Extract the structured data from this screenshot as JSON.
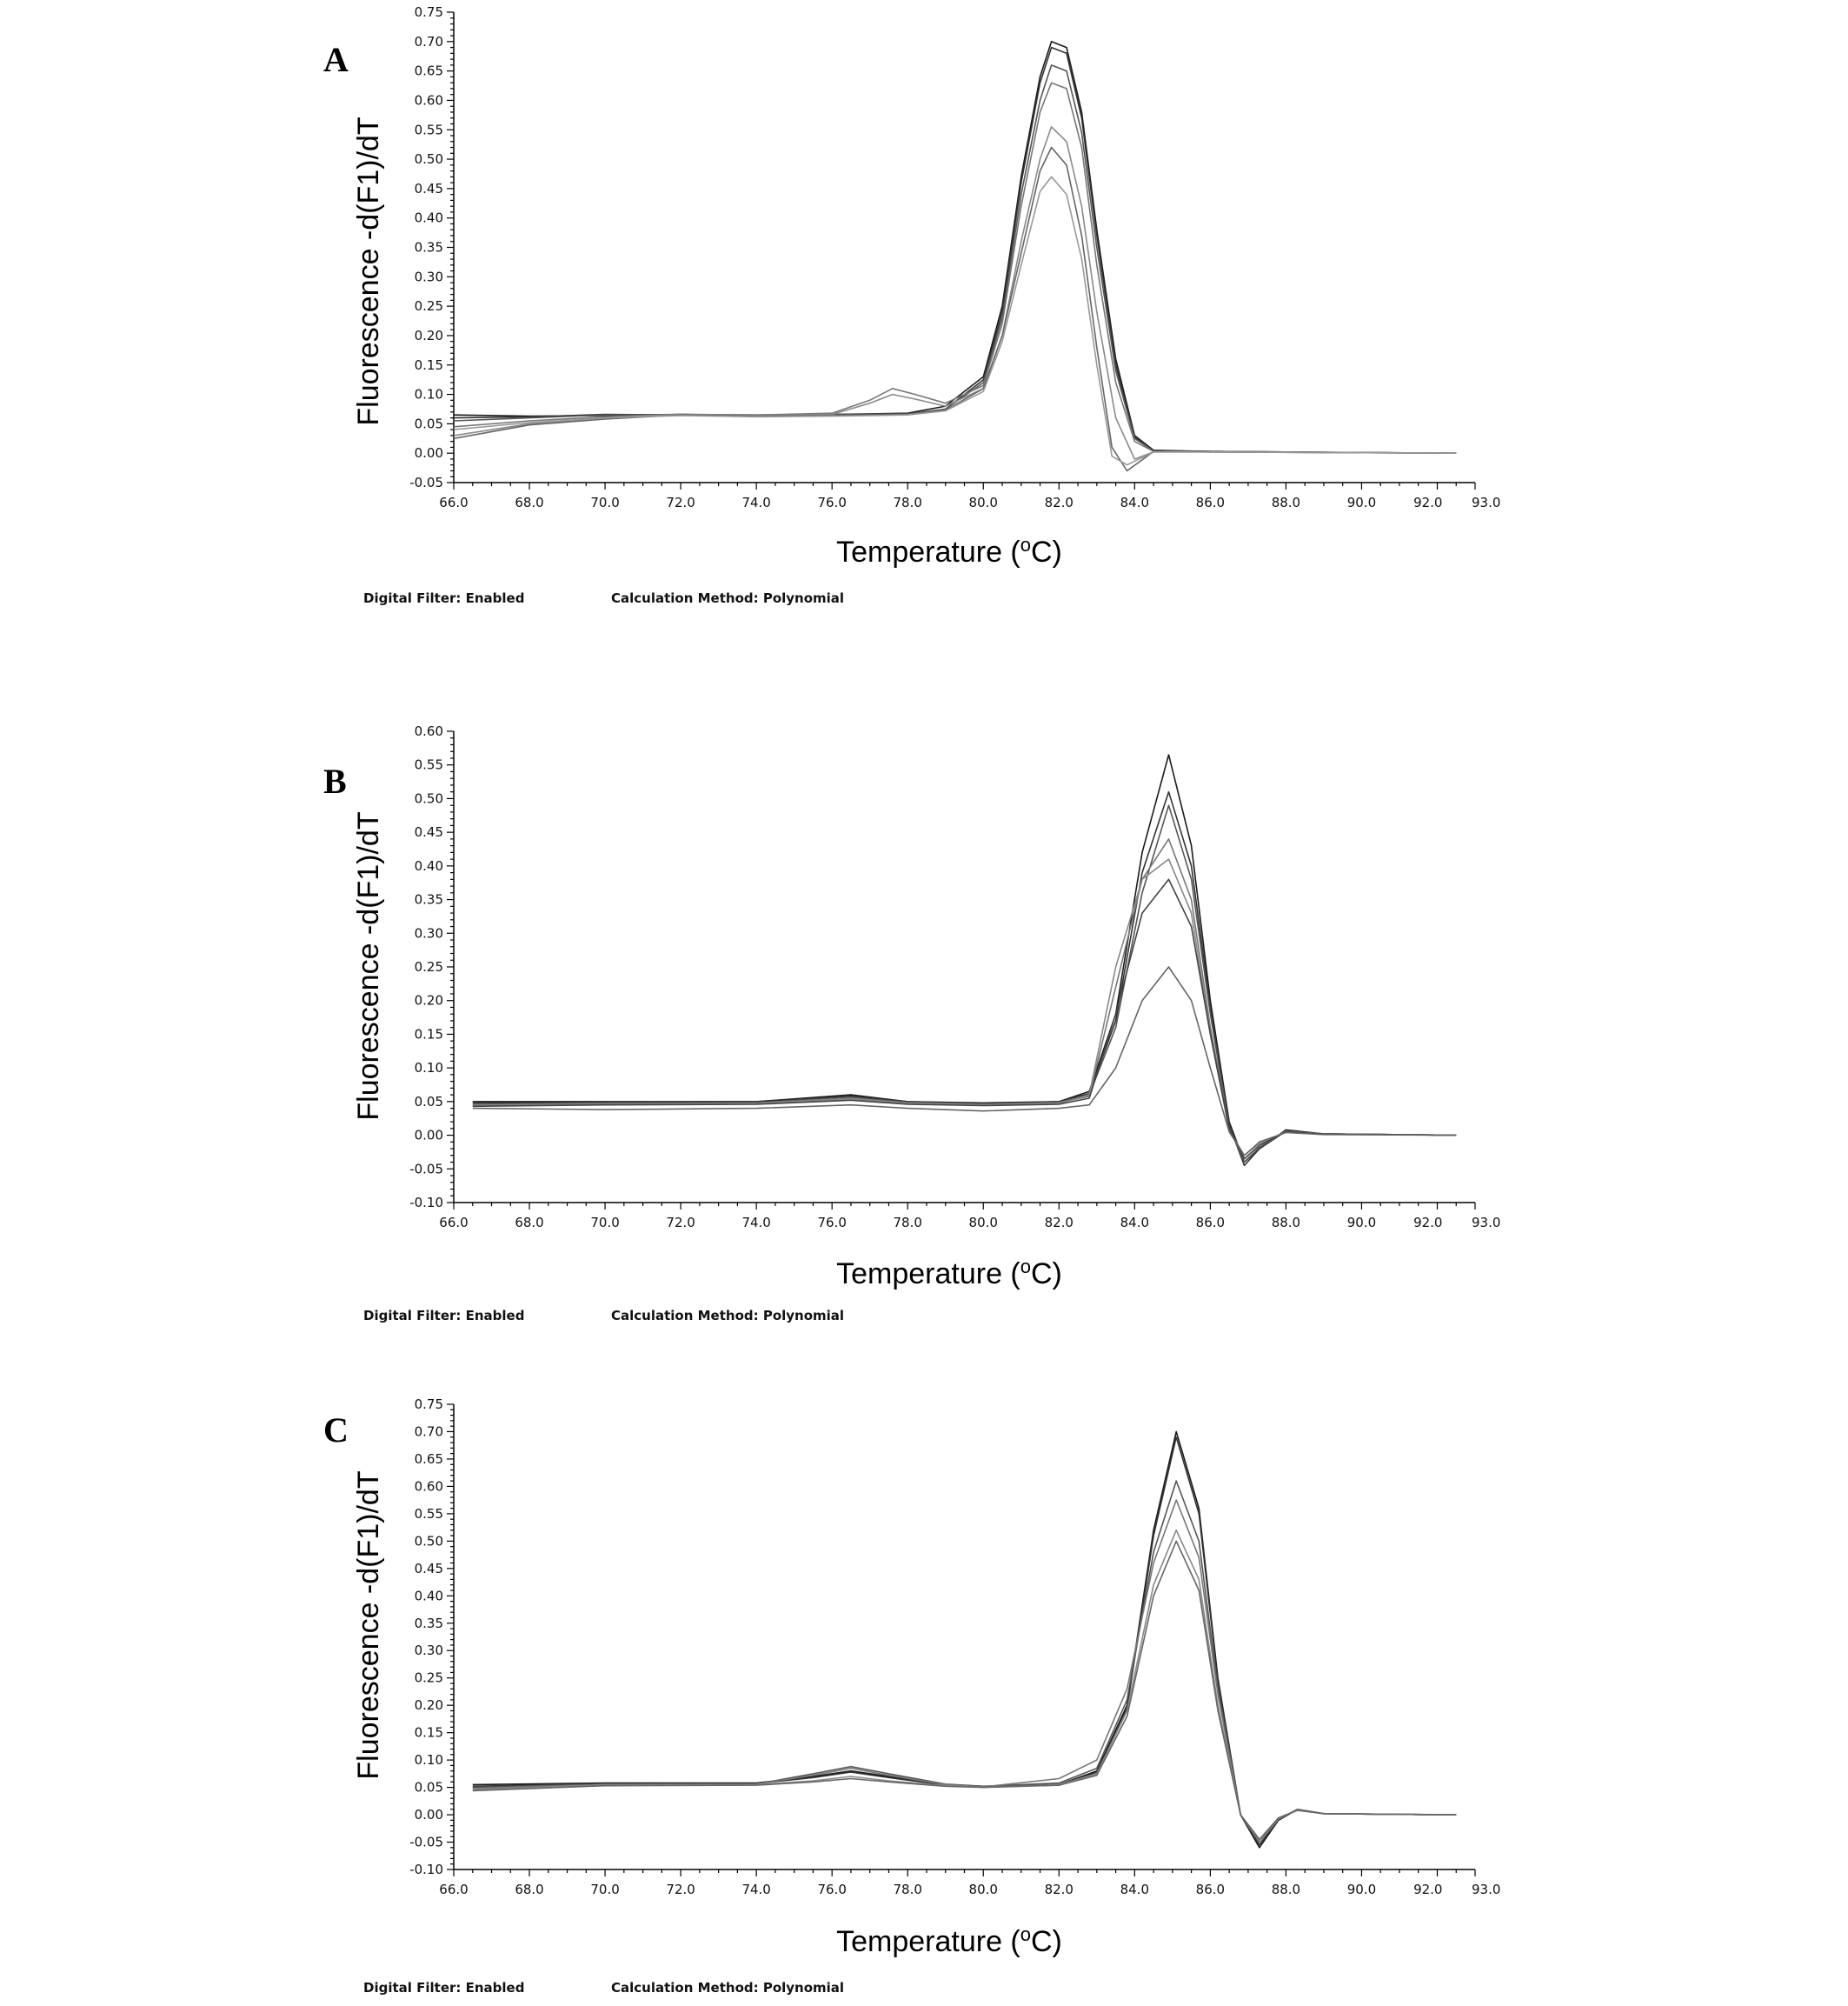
{
  "chart_data": [
    {
      "panel": "A",
      "type": "line",
      "xlabel": "Temperature (oC)",
      "ylabel": "Fluorescence -d(F1)/dT",
      "xlim": [
        66.0,
        93.0
      ],
      "ylim": [
        -0.05,
        0.75
      ],
      "x_ticks": [
        "66.0",
        "68.0",
        "70.0",
        "72.0",
        "74.0",
        "76.0",
        "78.0",
        "80.0",
        "82.0",
        "84.0",
        "86.0",
        "88.0",
        "90.0",
        "92.0",
        "93.0"
      ],
      "y_ticks": [
        "0.75",
        "0.70",
        "0.65",
        "0.60",
        "0.55",
        "0.50",
        "0.45",
        "0.40",
        "0.35",
        "0.30",
        "0.25",
        "0.20",
        "0.15",
        "0.10",
        "0.05",
        "0.00",
        "-0.05"
      ],
      "footer_left": "Digital Filter: Enabled",
      "footer_right": "Calculation Method: Polynomial",
      "series": [
        {
          "color": "#1a1a1a",
          "x": [
            66.0,
            68.0,
            70.0,
            72.0,
            74.0,
            76.0,
            78.0,
            79.0,
            80.0,
            80.5,
            81.0,
            81.5,
            81.8,
            82.2,
            82.6,
            83.0,
            83.5,
            84.0,
            84.5,
            86.0,
            92.5
          ],
          "y": [
            0.065,
            0.063,
            0.064,
            0.066,
            0.064,
            0.066,
            0.068,
            0.08,
            0.13,
            0.25,
            0.47,
            0.64,
            0.7,
            0.69,
            0.58,
            0.38,
            0.16,
            0.03,
            0.005,
            0.003,
            0.0
          ]
        },
        {
          "color": "#333333",
          "x": [
            66.0,
            68.0,
            70.0,
            72.0,
            74.0,
            76.0,
            78.0,
            79.0,
            80.0,
            80.5,
            81.0,
            81.5,
            81.8,
            82.2,
            82.6,
            83.0,
            83.5,
            84.0,
            84.5,
            86.0,
            92.5
          ],
          "y": [
            0.06,
            0.062,
            0.066,
            0.065,
            0.063,
            0.064,
            0.066,
            0.075,
            0.125,
            0.24,
            0.46,
            0.63,
            0.69,
            0.68,
            0.57,
            0.37,
            0.15,
            0.028,
            0.004,
            0.003,
            0.0
          ]
        },
        {
          "color": "#555555",
          "x": [
            66.0,
            68.0,
            70.0,
            72.0,
            74.0,
            76.0,
            78.0,
            79.0,
            80.0,
            80.5,
            81.0,
            81.5,
            81.8,
            82.2,
            82.6,
            83.0,
            83.5,
            84.0,
            84.5,
            86.0,
            92.5
          ],
          "y": [
            0.055,
            0.06,
            0.065,
            0.066,
            0.065,
            0.066,
            0.067,
            0.075,
            0.12,
            0.23,
            0.44,
            0.6,
            0.66,
            0.65,
            0.545,
            0.35,
            0.14,
            0.025,
            0.004,
            0.003,
            0.0
          ]
        },
        {
          "color": "#777777",
          "x": [
            66.0,
            68.0,
            70.0,
            72.0,
            74.0,
            76.0,
            77.0,
            77.6,
            78.2,
            79.0,
            80.0,
            80.5,
            81.0,
            81.5,
            81.8,
            82.2,
            82.6,
            83.0,
            83.5,
            84.0,
            84.5,
            86.0,
            92.5
          ],
          "y": [
            0.045,
            0.055,
            0.062,
            0.066,
            0.065,
            0.068,
            0.09,
            0.11,
            0.1,
            0.085,
            0.115,
            0.22,
            0.42,
            0.58,
            0.63,
            0.62,
            0.52,
            0.32,
            0.12,
            0.02,
            0.003,
            0.002,
            0.0
          ]
        },
        {
          "color": "#8a8a8a",
          "x": [
            66.0,
            68.0,
            70.0,
            72.0,
            74.0,
            76.0,
            77.0,
            77.6,
            78.2,
            79.0,
            80.0,
            80.5,
            81.0,
            81.5,
            81.8,
            82.2,
            82.6,
            83.0,
            83.5,
            84.0,
            84.5,
            86.0,
            92.5
          ],
          "y": [
            0.03,
            0.05,
            0.06,
            0.066,
            0.064,
            0.066,
            0.085,
            0.1,
            0.092,
            0.08,
            0.11,
            0.2,
            0.36,
            0.5,
            0.555,
            0.53,
            0.42,
            0.24,
            0.06,
            -0.01,
            0.002,
            0.002,
            0.0
          ]
        },
        {
          "color": "#666666",
          "x": [
            66.0,
            68.0,
            70.0,
            72.0,
            74.0,
            76.0,
            78.0,
            79.0,
            80.0,
            80.5,
            81.0,
            81.5,
            81.8,
            82.2,
            82.6,
            83.0,
            83.4,
            83.8,
            84.5,
            86.0,
            92.5
          ],
          "y": [
            0.025,
            0.048,
            0.058,
            0.065,
            0.063,
            0.064,
            0.066,
            0.073,
            0.11,
            0.2,
            0.34,
            0.48,
            0.52,
            0.49,
            0.37,
            0.18,
            0.01,
            -0.03,
            0.003,
            0.002,
            0.0
          ]
        },
        {
          "color": "#999999",
          "x": [
            66.0,
            68.0,
            70.0,
            72.0,
            74.0,
            76.0,
            78.0,
            79.0,
            80.0,
            80.5,
            81.0,
            81.5,
            81.8,
            82.2,
            82.6,
            83.0,
            83.4,
            83.8,
            84.5,
            86.0,
            92.5
          ],
          "y": [
            0.04,
            0.052,
            0.06,
            0.064,
            0.062,
            0.063,
            0.065,
            0.072,
            0.105,
            0.19,
            0.32,
            0.445,
            0.47,
            0.44,
            0.33,
            0.15,
            -0.005,
            -0.02,
            0.002,
            0.002,
            0.0
          ]
        }
      ]
    },
    {
      "panel": "B",
      "type": "line",
      "xlabel": "Temperature (oC)",
      "ylabel": "Fluorescence -d(F1)/dT",
      "xlim": [
        66.0,
        93.0
      ],
      "ylim": [
        -0.1,
        0.6
      ],
      "x_ticks": [
        "66.0",
        "68.0",
        "70.0",
        "72.0",
        "74.0",
        "76.0",
        "78.0",
        "80.0",
        "82.0",
        "84.0",
        "86.0",
        "88.0",
        "90.0",
        "92.0",
        "93.0"
      ],
      "y_ticks": [
        "0.60",
        "0.55",
        "0.50",
        "0.45",
        "0.40",
        "0.35",
        "0.30",
        "0.25",
        "0.20",
        "0.15",
        "0.10",
        "0.05",
        "0.00",
        "-0.05",
        "-0.10"
      ],
      "footer_left": "Digital Filter: Enabled",
      "footer_right": "Calculation Method: Polynomial",
      "series": [
        {
          "color": "#1a1a1a",
          "x": [
            66.5,
            70.0,
            74.0,
            76.5,
            78.0,
            80.0,
            82.0,
            82.8,
            83.5,
            84.2,
            84.9,
            85.5,
            86.0,
            86.5,
            86.9,
            87.3,
            88.0,
            89.0,
            92.5
          ],
          "y": [
            0.05,
            0.05,
            0.05,
            0.06,
            0.05,
            0.048,
            0.05,
            0.065,
            0.18,
            0.42,
            0.565,
            0.43,
            0.2,
            0.02,
            -0.04,
            -0.02,
            0.008,
            0.002,
            0.0
          ]
        },
        {
          "color": "#333333",
          "x": [
            66.5,
            70.0,
            74.0,
            76.5,
            78.0,
            80.0,
            82.0,
            82.8,
            83.5,
            84.2,
            84.9,
            85.5,
            86.0,
            86.5,
            86.9,
            87.3,
            88.0,
            89.0,
            92.5
          ],
          "y": [
            0.048,
            0.049,
            0.05,
            0.058,
            0.05,
            0.047,
            0.05,
            0.062,
            0.17,
            0.39,
            0.51,
            0.4,
            0.19,
            0.015,
            -0.045,
            -0.02,
            0.006,
            0.002,
            0.0
          ]
        },
        {
          "color": "#555555",
          "x": [
            66.5,
            70.0,
            74.0,
            76.5,
            78.0,
            80.0,
            82.0,
            82.8,
            83.5,
            84.2,
            84.9,
            85.5,
            86.0,
            86.5,
            86.9,
            87.3,
            88.0,
            89.0,
            92.5
          ],
          "y": [
            0.046,
            0.048,
            0.048,
            0.056,
            0.049,
            0.046,
            0.049,
            0.06,
            0.16,
            0.36,
            0.49,
            0.38,
            0.18,
            0.012,
            -0.04,
            -0.018,
            0.006,
            0.002,
            0.0
          ]
        },
        {
          "color": "#777777",
          "x": [
            66.5,
            70.0,
            74.0,
            76.5,
            78.0,
            80.0,
            82.0,
            82.8,
            83.5,
            84.2,
            84.9,
            85.5,
            86.0,
            86.5,
            86.9,
            87.3,
            88.0,
            89.0,
            92.5
          ],
          "y": [
            0.045,
            0.047,
            0.048,
            0.055,
            0.048,
            0.046,
            0.048,
            0.058,
            0.22,
            0.38,
            0.44,
            0.35,
            0.16,
            0.01,
            -0.035,
            -0.015,
            0.006,
            0.002,
            0.0
          ]
        },
        {
          "color": "#888888",
          "x": [
            66.5,
            70.0,
            74.0,
            76.5,
            78.0,
            80.0,
            82.0,
            82.8,
            83.5,
            84.2,
            84.9,
            85.5,
            86.0,
            86.5,
            86.9,
            87.3,
            88.0,
            89.0,
            92.5
          ],
          "y": [
            0.044,
            0.046,
            0.047,
            0.054,
            0.047,
            0.045,
            0.047,
            0.06,
            0.25,
            0.38,
            0.41,
            0.33,
            0.15,
            0.008,
            -0.03,
            -0.012,
            0.005,
            0.002,
            0.0
          ]
        },
        {
          "color": "#444444",
          "x": [
            66.5,
            70.0,
            74.0,
            76.5,
            78.0,
            80.0,
            82.0,
            82.8,
            83.5,
            84.2,
            84.9,
            85.5,
            86.0,
            86.5,
            86.9,
            87.3,
            88.0,
            89.0,
            92.5
          ],
          "y": [
            0.043,
            0.045,
            0.046,
            0.052,
            0.046,
            0.044,
            0.046,
            0.055,
            0.18,
            0.33,
            0.38,
            0.31,
            0.15,
            0.01,
            -0.035,
            -0.015,
            0.005,
            0.002,
            0.0
          ]
        },
        {
          "color": "#666666",
          "x": [
            66.5,
            70.0,
            74.0,
            76.5,
            78.0,
            80.0,
            82.0,
            82.8,
            83.5,
            84.2,
            84.9,
            85.5,
            86.0,
            86.5,
            86.9,
            87.3,
            88.0,
            89.0,
            92.5
          ],
          "y": [
            0.04,
            0.038,
            0.04,
            0.045,
            0.04,
            0.036,
            0.04,
            0.045,
            0.1,
            0.2,
            0.25,
            0.2,
            0.1,
            0.005,
            -0.03,
            -0.01,
            0.004,
            0.001,
            0.0
          ]
        }
      ]
    },
    {
      "panel": "C",
      "type": "line",
      "xlabel": "Temperature (oC)",
      "ylabel": "Fluorescence -d(F1)/dT",
      "xlim": [
        66.0,
        93.0
      ],
      "ylim": [
        -0.1,
        0.75
      ],
      "x_ticks": [
        "66.0",
        "68.0",
        "70.0",
        "72.0",
        "74.0",
        "76.0",
        "78.0",
        "80.0",
        "82.0",
        "84.0",
        "86.0",
        "88.0",
        "90.0",
        "92.0",
        "93.0"
      ],
      "y_ticks": [
        "0.75",
        "0.70",
        "0.65",
        "0.60",
        "0.55",
        "0.50",
        "0.45",
        "0.40",
        "0.35",
        "0.30",
        "0.25",
        "0.20",
        "0.15",
        "0.10",
        "0.05",
        "0.00",
        "-0.05",
        "-0.10"
      ],
      "footer_left": "Digital Filter: Enabled",
      "footer_right": "Calculation Method: Polynomial",
      "series": [
        {
          "color": "#1a1a1a",
          "x": [
            66.5,
            70.0,
            74.0,
            75.5,
            76.5,
            77.5,
            79.0,
            80.0,
            82.0,
            83.0,
            83.8,
            84.5,
            85.1,
            85.7,
            86.2,
            86.8,
            87.3,
            87.8,
            88.3,
            89.0,
            92.5
          ],
          "y": [
            0.055,
            0.058,
            0.058,
            0.07,
            0.08,
            0.07,
            0.055,
            0.052,
            0.055,
            0.08,
            0.2,
            0.52,
            0.7,
            0.56,
            0.25,
            0.0,
            -0.06,
            -0.01,
            0.01,
            0.002,
            0.0
          ]
        },
        {
          "color": "#333333",
          "x": [
            66.5,
            70.0,
            74.0,
            75.5,
            76.5,
            77.5,
            79.0,
            80.0,
            82.0,
            83.0,
            83.8,
            84.5,
            85.1,
            85.7,
            86.2,
            86.8,
            87.3,
            87.8,
            88.3,
            89.0,
            92.5
          ],
          "y": [
            0.052,
            0.057,
            0.057,
            0.068,
            0.078,
            0.068,
            0.054,
            0.051,
            0.054,
            0.078,
            0.195,
            0.51,
            0.69,
            0.55,
            0.245,
            0.0,
            -0.055,
            -0.01,
            0.01,
            0.002,
            0.0
          ]
        },
        {
          "color": "#555555",
          "x": [
            66.5,
            70.0,
            74.0,
            75.5,
            76.5,
            77.5,
            79.0,
            80.0,
            82.0,
            83.0,
            83.8,
            84.5,
            85.1,
            85.7,
            86.2,
            86.8,
            87.3,
            87.8,
            88.3,
            89.0,
            92.5
          ],
          "y": [
            0.05,
            0.056,
            0.056,
            0.075,
            0.088,
            0.075,
            0.056,
            0.052,
            0.058,
            0.085,
            0.21,
            0.48,
            0.61,
            0.5,
            0.23,
            0.0,
            -0.05,
            -0.008,
            0.01,
            0.002,
            0.0
          ]
        },
        {
          "color": "#777777",
          "x": [
            66.5,
            70.0,
            74.0,
            75.5,
            76.5,
            77.5,
            79.0,
            80.0,
            82.0,
            83.0,
            83.8,
            84.5,
            85.1,
            85.7,
            86.2,
            86.8,
            87.3,
            87.8,
            88.3,
            89.0,
            92.5
          ],
          "y": [
            0.048,
            0.055,
            0.056,
            0.072,
            0.085,
            0.072,
            0.055,
            0.051,
            0.066,
            0.1,
            0.23,
            0.46,
            0.575,
            0.47,
            0.22,
            0.0,
            -0.05,
            -0.008,
            0.01,
            0.002,
            0.0
          ]
        },
        {
          "color": "#888888",
          "x": [
            66.5,
            70.0,
            74.0,
            75.5,
            76.5,
            77.5,
            79.0,
            80.0,
            82.0,
            83.0,
            83.8,
            84.5,
            85.1,
            85.7,
            86.2,
            86.8,
            87.3,
            87.8,
            88.3,
            89.0,
            92.5
          ],
          "y": [
            0.046,
            0.054,
            0.055,
            0.062,
            0.07,
            0.062,
            0.053,
            0.05,
            0.055,
            0.075,
            0.19,
            0.42,
            0.52,
            0.43,
            0.2,
            0.0,
            -0.045,
            -0.006,
            0.008,
            0.002,
            0.0
          ]
        },
        {
          "color": "#666666",
          "x": [
            66.5,
            70.0,
            74.0,
            75.5,
            76.5,
            77.5,
            79.0,
            80.0,
            82.0,
            83.0,
            83.8,
            84.5,
            85.1,
            85.7,
            86.2,
            86.8,
            87.3,
            87.8,
            88.3,
            89.0,
            92.5
          ],
          "y": [
            0.044,
            0.053,
            0.054,
            0.06,
            0.066,
            0.06,
            0.052,
            0.05,
            0.054,
            0.072,
            0.18,
            0.4,
            0.5,
            0.41,
            0.19,
            0.0,
            -0.045,
            -0.006,
            0.008,
            0.002,
            0.0
          ]
        }
      ]
    }
  ]
}
